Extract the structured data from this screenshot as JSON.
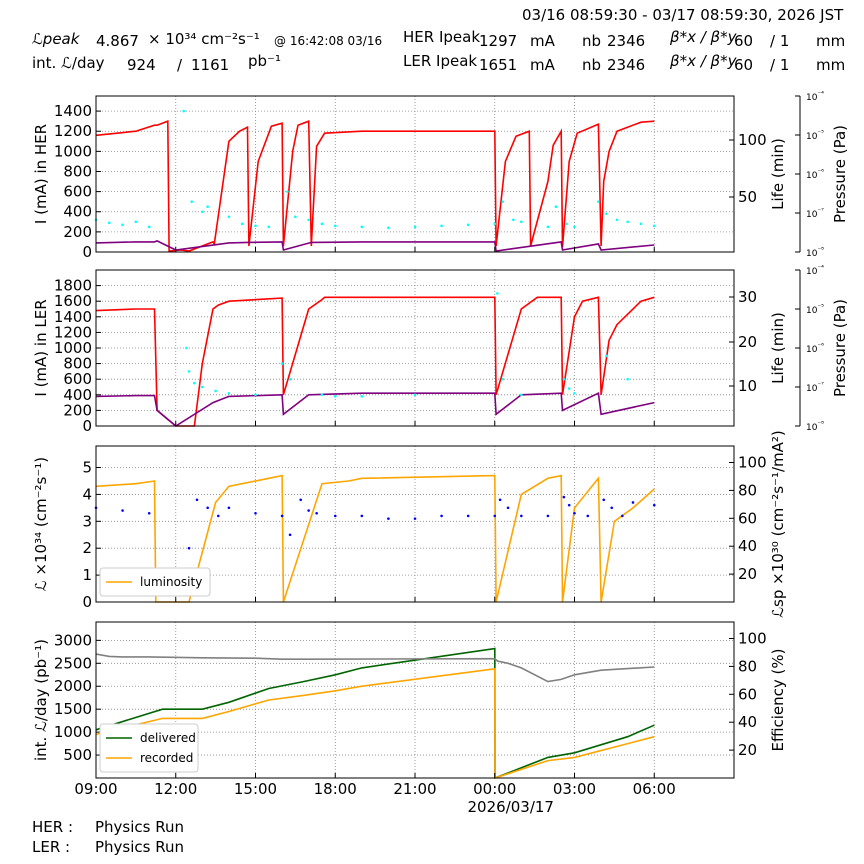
{
  "header": {
    "time_range": "03/16 08:59:30 - 03/17 08:59:30, 2026 JST",
    "lpeak_label": "ℒpeak",
    "lpeak_value": "4.867",
    "lpeak_unit": "× 10³⁴ cm⁻²s⁻¹",
    "lpeak_time": "@ 16:42:08 03/16",
    "int_label": "int. ℒ/day",
    "int_value1": "924",
    "int_sep": "/",
    "int_value2": "1161",
    "int_unit": "pb⁻¹",
    "her_label": "HER Ipeak",
    "her_value": "1297",
    "her_unit": "mA",
    "ler_label": "LER Ipeak",
    "ler_value": "1651",
    "ler_unit": "mA",
    "nb_label": "nb",
    "nb_her": "2346",
    "nb_ler": "2346",
    "beta_label": "β*x / β*y",
    "beta_her_x": "60",
    "beta_her_y": "/ 1",
    "beta_ler_x": "60",
    "beta_ler_y": "/ 1",
    "beta_unit": "mm"
  },
  "footer": {
    "her_label": "HER :",
    "her_status": "Physics Run",
    "ler_label": "LER :",
    "ler_status": "Physics Run"
  },
  "colors": {
    "current": "#ff0000",
    "life": "#800080",
    "pressure": "#00ffff",
    "luminosity": "#ffa500",
    "specific": "#0000ff",
    "delivered": "#006400",
    "recorded": "#ffa500",
    "efficiency": "#808080"
  },
  "chart_data": [
    {
      "type": "line",
      "ylabel": "I (mA) in HER",
      "y2label": "Life (min)",
      "y3label": "Pressure (Pa)",
      "ylim": [
        0,
        1550
      ],
      "yticks": [
        "0",
        "200",
        "400",
        "600",
        "800",
        "1000",
        "1200",
        "1400"
      ],
      "y2ticks": [
        "50",
        "100"
      ],
      "y3ticks": [
        "10⁻⁸",
        "10⁻⁷",
        "10⁻⁶",
        "10⁻⁵",
        "10⁻⁴"
      ],
      "grid": true,
      "series": [
        {
          "role": "current",
          "x": [
            0,
            1.5,
            2.2,
            2.3,
            2.7,
            2.75,
            3.2,
            3.5,
            4.4,
            4.45,
            5.0,
            5.4,
            5.7,
            5.75,
            6.1,
            6.6,
            7.0,
            7.05,
            7.4,
            7.6,
            8.0,
            8.1,
            8.3,
            8.6,
            10,
            13,
            15.0,
            15.05,
            15.4,
            15.8,
            16.3,
            16.35,
            17.0,
            17.2,
            17.5,
            17.55,
            17.8,
            18.1,
            18.9,
            19.0,
            19.1,
            19.3,
            19.6,
            20.5,
            21.0
          ],
          "y": [
            1160,
            1200,
            1260,
            1260,
            1300,
            10,
            20,
            10,
            100,
            80,
            1100,
            1200,
            1240,
            60,
            900,
            1250,
            1280,
            60,
            1000,
            1260,
            1300,
            60,
            1050,
            1180,
            1200,
            1200,
            1200,
            60,
            900,
            1150,
            1200,
            60,
            700,
            1060,
            1200,
            50,
            900,
            1180,
            1270,
            60,
            700,
            1000,
            1200,
            1290,
            1300
          ]
        },
        {
          "role": "life",
          "x": [
            0,
            1.5,
            2.2,
            2.3,
            3.0,
            5.0,
            5.7,
            7.0,
            7.05,
            8.1,
            10,
            15.0,
            15.05,
            17.5,
            17.55,
            18.9,
            19.0,
            21.0
          ],
          "y": [
            90,
            100,
            100,
            110,
            20,
            90,
            95,
            100,
            20,
            95,
            100,
            100,
            10,
            100,
            20,
            80,
            20,
            70
          ]
        }
      ],
      "scatter": {
        "role": "pressure",
        "x": [
          0,
          0.5,
          1.0,
          1.5,
          2.0,
          3.3,
          3.6,
          4.0,
          4.2,
          5.0,
          5.5,
          6.0,
          6.5,
          7.2,
          7.5,
          8.0,
          8.5,
          9,
          10,
          11,
          12,
          13,
          14,
          15,
          15.3,
          15.7,
          16,
          17,
          17.3,
          17.7,
          18,
          18.9,
          19.2,
          19.6,
          20,
          20.5,
          21
        ],
        "y": [
          320,
          290,
          270,
          300,
          250,
          1400,
          500,
          400,
          450,
          350,
          280,
          260,
          250,
          600,
          350,
          320,
          280,
          260,
          250,
          240,
          250,
          260,
          270,
          280,
          500,
          320,
          300,
          250,
          450,
          280,
          250,
          500,
          380,
          320,
          300,
          280,
          260
        ]
      }
    },
    {
      "type": "line",
      "ylabel": "I (mA) in LER",
      "y2label": "Life (min)",
      "y3label": "Pressure (Pa)",
      "ylim": [
        0,
        2000
      ],
      "yticks": [
        "0",
        "200",
        "400",
        "600",
        "800",
        "1000",
        "1200",
        "1400",
        "1600",
        "1800"
      ],
      "y2ticks": [
        "10",
        "20",
        "30"
      ],
      "y3ticks": [
        "10⁻⁸",
        "10⁻⁷",
        "10⁻⁶",
        "10⁻⁵",
        "10⁻⁴"
      ],
      "grid": true,
      "series": [
        {
          "role": "current",
          "x": [
            0,
            1.5,
            2.2,
            2.3,
            3.0,
            3.4,
            3.7,
            4.0,
            4.4,
            4.6,
            5.0,
            7.0,
            7.05,
            8.0,
            8.5,
            8.6,
            8.9,
            9.5,
            10,
            15,
            15.0,
            15.05,
            16,
            16.6,
            17.5,
            17.55,
            18.0,
            18.3,
            18.9,
            19.0,
            19.3,
            19.6,
            20.5,
            21.0
          ],
          "y": [
            1480,
            1500,
            1500,
            200,
            0,
            0,
            0,
            800,
            1500,
            1550,
            1600,
            1640,
            400,
            1500,
            1620,
            1650,
            1650,
            1650,
            1650,
            1650,
            1650,
            400,
            1500,
            1650,
            1650,
            400,
            1400,
            1600,
            1650,
            400,
            1100,
            1300,
            1600,
            1650
          ]
        },
        {
          "role": "life",
          "x": [
            0,
            1.5,
            2.2,
            2.3,
            3.0,
            4.4,
            5.0,
            7.0,
            7.05,
            8.0,
            10,
            15.0,
            15.05,
            16,
            17.5,
            17.55,
            18.9,
            19.0,
            21.0
          ],
          "y": [
            380,
            390,
            390,
            200,
            0,
            300,
            380,
            400,
            150,
            400,
            420,
            420,
            150,
            400,
            420,
            200,
            420,
            150,
            300
          ]
        }
      ],
      "scatter": {
        "role": "pressure",
        "x": [
          3.4,
          3.5,
          3.7,
          4.0,
          4.5,
          5,
          6,
          7.0,
          7.3,
          8.5,
          9,
          10,
          12,
          15.1,
          15.3,
          16,
          17.6,
          17.8,
          18,
          19.2,
          20
        ],
        "y": [
          1000,
          700,
          550,
          500,
          450,
          420,
          400,
          800,
          600,
          400,
          380,
          380,
          400,
          1700,
          600,
          400,
          600,
          480,
          420,
          900,
          600
        ]
      }
    },
    {
      "type": "line",
      "ylabel": "ℒ ×10³⁴ (cm⁻²s⁻¹)",
      "y2label": "ℒsp ×10³⁰ (cm⁻²s⁻¹/mA²)",
      "ylim": [
        0,
        5.8
      ],
      "yticks": [
        "0",
        "1",
        "2",
        "3",
        "4",
        "5"
      ],
      "y2ticks": [
        "20",
        "40",
        "60",
        "80",
        "100"
      ],
      "grid": true,
      "legend": "lower-left",
      "series": [
        {
          "name": "luminosity",
          "role": "luminosity",
          "x": [
            0,
            1.5,
            2.2,
            2.25,
            3.5,
            4.5,
            5.0,
            6.5,
            7.0,
            7.05,
            8.5,
            9.5,
            10,
            15,
            15.0,
            15.05,
            16,
            17,
            17.5,
            17.55,
            18.0,
            18.9,
            19.0,
            19.5,
            20.2,
            21.0
          ],
          "y": [
            4.3,
            4.4,
            4.5,
            0,
            0,
            3.7,
            4.3,
            4.6,
            4.7,
            0,
            4.4,
            4.5,
            4.6,
            4.7,
            4.7,
            0,
            4.0,
            4.6,
            4.7,
            0,
            3.5,
            4.6,
            0,
            3.0,
            3.5,
            4.2
          ]
        }
      ],
      "scatter": {
        "role": "specific",
        "x": [
          0,
          1,
          2,
          3.5,
          3.8,
          4.2,
          4.6,
          5,
          6,
          7,
          7.3,
          7.7,
          8,
          8.3,
          9,
          10,
          11,
          12,
          13,
          14,
          15,
          15.2,
          15.5,
          16,
          17,
          17.6,
          17.8,
          18,
          18.5,
          19.1,
          19.4,
          19.8,
          20.2,
          21
        ],
        "y": [
          3.5,
          3.4,
          3.3,
          2.0,
          3.8,
          3.5,
          3.2,
          3.5,
          3.3,
          3.2,
          2.5,
          3.8,
          3.4,
          3.3,
          3.2,
          3.2,
          3.1,
          3.1,
          3.2,
          3.2,
          3.2,
          3.8,
          3.5,
          3.2,
          3.2,
          3.9,
          3.6,
          3.3,
          3.2,
          3.8,
          3.5,
          3.2,
          3.7,
          3.6
        ]
      }
    },
    {
      "type": "line",
      "ylabel": "int. ℒ/day (pb⁻¹)",
      "y2label": "Efficiency (%)",
      "ylim": [
        0,
        3400
      ],
      "yticks": [
        "500",
        "1000",
        "1500",
        "2000",
        "2500",
        "3000"
      ],
      "y2ticks": [
        "20",
        "40",
        "60",
        "80",
        "100"
      ],
      "xticks": [
        "09:00",
        "12:00",
        "15:00",
        "18:00",
        "21:00",
        "00:00",
        "03:00",
        "06:00"
      ],
      "xdate": "2026/03/17",
      "grid": true,
      "legend": "lower-left",
      "series": [
        {
          "name": "delivered",
          "role": "delivered",
          "x": [
            0,
            2.5,
            4.0,
            5.0,
            6.5,
            7.8,
            9.0,
            10,
            15,
            15.01,
            17,
            18,
            20,
            21
          ],
          "y": [
            1050,
            1500,
            1500,
            1650,
            1950,
            2100,
            2250,
            2400,
            2820,
            0,
            450,
            550,
            900,
            1150
          ]
        },
        {
          "name": "recorded",
          "role": "recorded",
          "x": [
            0,
            2.5,
            4.0,
            5.0,
            6.5,
            7.8,
            9.0,
            10,
            15,
            15.01,
            17,
            18,
            20,
            21
          ],
          "y": [
            950,
            1300,
            1300,
            1450,
            1700,
            1800,
            1900,
            2000,
            2380,
            0,
            380,
            450,
            750,
            900
          ]
        },
        {
          "role": "efficiency",
          "x": [
            0,
            0.5,
            1,
            2,
            4,
            6,
            7,
            8,
            15,
            15.1,
            15.5,
            16,
            17,
            17.5,
            18,
            19,
            21
          ],
          "y": [
            2700,
            2650,
            2640,
            2640,
            2620,
            2610,
            2590,
            2590,
            2600,
            2550,
            2500,
            2400,
            2100,
            2150,
            2250,
            2350,
            2420
          ]
        }
      ]
    }
  ]
}
